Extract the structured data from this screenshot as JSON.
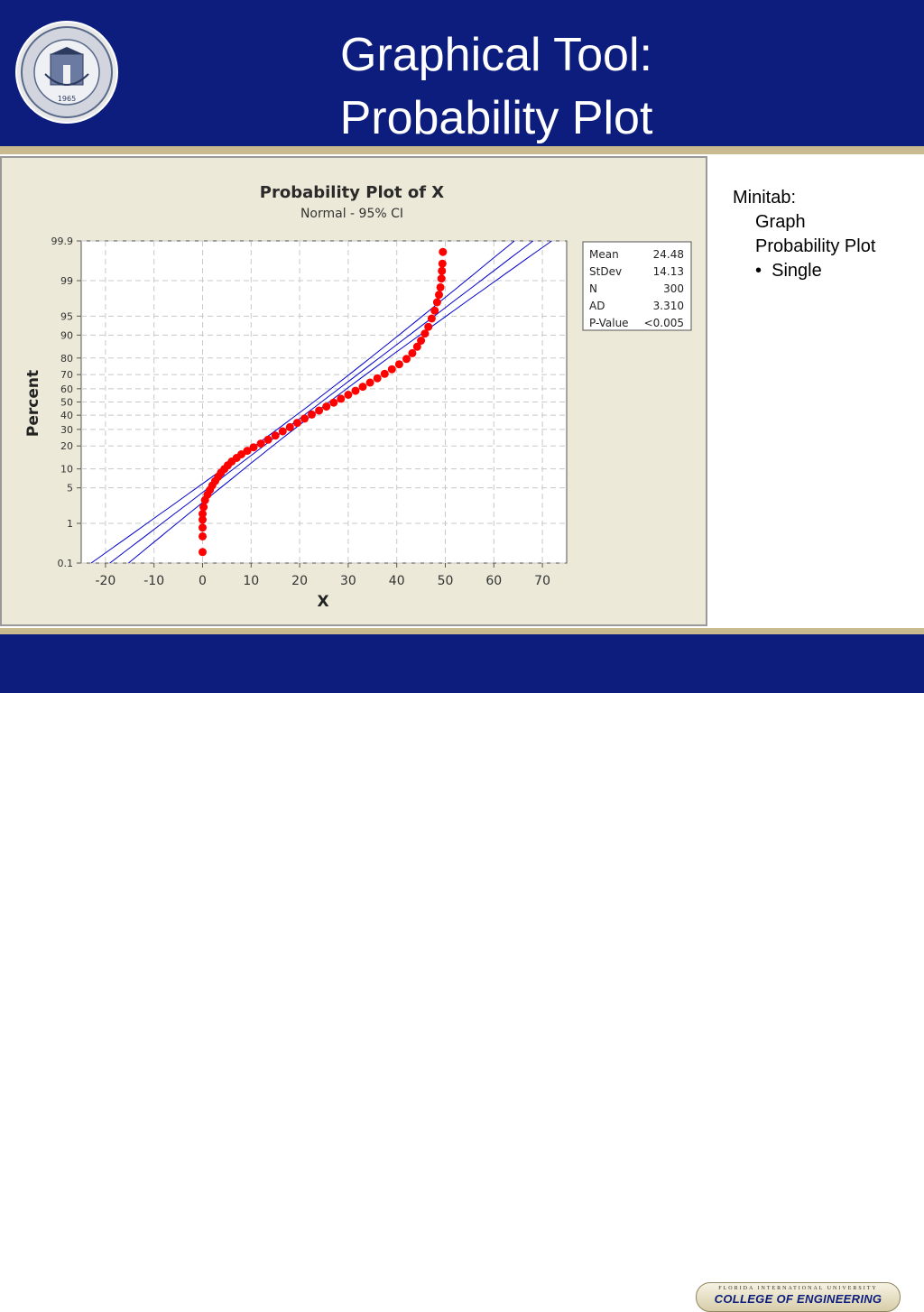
{
  "slide": {
    "title_line1": "Graphical Tool:",
    "title_line2": "Probability Plot",
    "logo": {
      "icon": "university-seal-icon",
      "ring_text": "FLORIDA INTERNATIONAL UNIVERSITY MIAMI",
      "year": "1965"
    },
    "side_notes": {
      "line1": "Minitab:",
      "line2": "Graph",
      "line3": "Probability Plot",
      "bullet": "•",
      "line4": "Single"
    },
    "footer_badge": {
      "top_text": "FLORIDA INTERNATIONAL UNIVERSITY",
      "main_text": "COLLEGE OF ENGINEERING"
    },
    "colors": {
      "header_bg": "#0d1d7e",
      "stripe": "#c9ba8f",
      "data_points": "#ff0000",
      "fit_lines": "#0000cc"
    }
  },
  "chart_data": {
    "type": "scatter",
    "title": "Probability Plot of X",
    "subtitle": "Normal - 95% CI",
    "xlabel": "X",
    "ylabel": "Percent",
    "xlim": [
      -25,
      75
    ],
    "ylim_percent": [
      0.1,
      99.9
    ],
    "y_scale": "normal-probability",
    "grid": true,
    "x_ticks": [
      -20,
      -10,
      0,
      10,
      20,
      30,
      40,
      50,
      60,
      70
    ],
    "y_ticks": [
      0.1,
      1,
      5,
      10,
      20,
      30,
      40,
      50,
      60,
      70,
      80,
      90,
      95,
      99,
      99.9
    ],
    "fit": {
      "mean": 24.48,
      "stdev": 14.13,
      "ci_level": 0.95
    },
    "legend": {
      "placement": "right",
      "rows": [
        {
          "label": "Mean",
          "value": "24.48"
        },
        {
          "label": "StDev",
          "value": "14.13"
        },
        {
          "label": "N",
          "value": "300"
        },
        {
          "label": "AD",
          "value": "3.310"
        },
        {
          "label": "P-Value",
          "value": "<0.005"
        }
      ]
    },
    "series": [
      {
        "points": [
          [
            0,
            0.2
          ],
          [
            0,
            0.5
          ],
          [
            0,
            0.8
          ],
          [
            0,
            1.2
          ],
          [
            0,
            1.6
          ],
          [
            0.2,
            2.2
          ],
          [
            0.5,
            3
          ],
          [
            1,
            3.8
          ],
          [
            1.5,
            4.6
          ],
          [
            2,
            5.5
          ],
          [
            2.6,
            6.5
          ],
          [
            3.2,
            7.6
          ],
          [
            3.8,
            8.8
          ],
          [
            4.5,
            10
          ],
          [
            5.2,
            11.3
          ],
          [
            6,
            12.7
          ],
          [
            7,
            14.2
          ],
          [
            8,
            15.8
          ],
          [
            9.2,
            17.5
          ],
          [
            10.5,
            19.3
          ],
          [
            12,
            21.3
          ],
          [
            13.5,
            23.5
          ],
          [
            15,
            26
          ],
          [
            16.5,
            28.7
          ],
          [
            18,
            31.5
          ],
          [
            19.5,
            34.5
          ],
          [
            21,
            37.5
          ],
          [
            22.5,
            40.5
          ],
          [
            24,
            43.5
          ],
          [
            25.5,
            46.5
          ],
          [
            27,
            49.5
          ],
          [
            28.5,
            52.5
          ],
          [
            30,
            55.5
          ],
          [
            31.5,
            58.5
          ],
          [
            33,
            61.5
          ],
          [
            34.5,
            64.5
          ],
          [
            36,
            67.5
          ],
          [
            37.5,
            70.5
          ],
          [
            39,
            73.5
          ],
          [
            40.5,
            76.5
          ],
          [
            42,
            79.5
          ],
          [
            43.2,
            82.5
          ],
          [
            44.2,
            85.5
          ],
          [
            45,
            88
          ],
          [
            45.8,
            90.5
          ],
          [
            46.5,
            92.5
          ],
          [
            47.2,
            94.5
          ],
          [
            47.8,
            96
          ],
          [
            48.3,
            97.2
          ],
          [
            48.7,
            98
          ],
          [
            49,
            98.6
          ],
          [
            49.2,
            99.1
          ],
          [
            49.3,
            99.4
          ],
          [
            49.4,
            99.6
          ],
          [
            49.5,
            99.8
          ]
        ]
      }
    ]
  }
}
